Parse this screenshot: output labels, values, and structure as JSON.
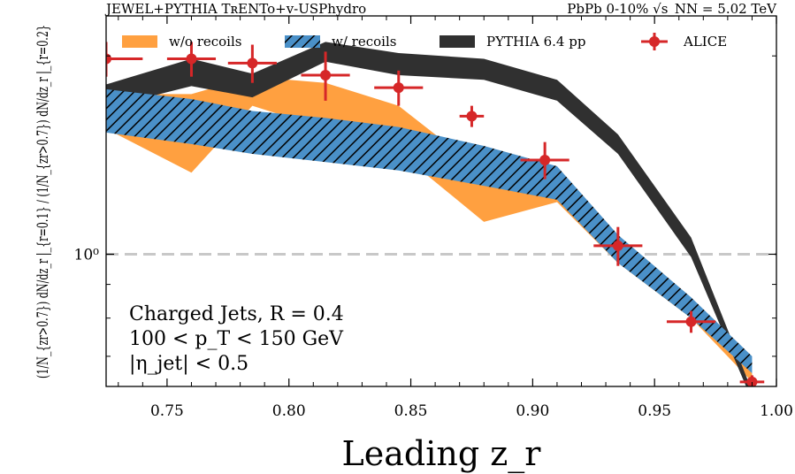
{
  "chart_data": {
    "type": "line",
    "title_left": "JEWEL+PYTHIA TʀENTo+v-USPhydro",
    "title_right": "PbPb 0-10% √s_NN = 5.02 TeV",
    "xlabel": "Leading z_r",
    "ylabel": "(1/N_{zr>0.7}) dN/dz_r |_{r=0.1} / (1/N_{zr>0.7}) dN/dz_r |_{r=0.2}",
    "xlim": [
      0.725,
      1.0
    ],
    "ylim": [
      0.63,
      2.3
    ],
    "yscale": "log",
    "x_ticks": [
      0.75,
      0.8,
      0.85,
      0.9,
      0.95,
      1.0
    ],
    "x_tick_labels": [
      "0.75",
      "0.80",
      "0.85",
      "0.90",
      "0.95",
      "1.00"
    ],
    "y_ticks": [
      1.0
    ],
    "y_tick_labels": [
      "10⁰"
    ],
    "reference_line": {
      "y": 1.0,
      "style": "dashed",
      "color": "#c8c8c8"
    },
    "legend_position": "top",
    "legend": [
      {
        "label": "w/o recoils",
        "style": "band",
        "color": "#ffa040"
      },
      {
        "label": "w/ recoils",
        "style": "hatched-band",
        "color": "#4a90c8"
      },
      {
        "label": "PYTHIA 6.4 pp",
        "style": "band",
        "color": "#303030"
      },
      {
        "label": "ALICE",
        "style": "errorbar",
        "color": "#d62728"
      }
    ],
    "series": [
      {
        "name": "w/o recoils",
        "style": "band",
        "color": "#ffa040",
        "x": [
          0.725,
          0.76,
          0.785,
          0.815,
          0.845,
          0.88,
          0.91,
          0.935,
          0.965,
          0.99
        ],
        "lower": [
          1.55,
          1.33,
          1.68,
          1.55,
          1.43,
          1.12,
          1.2,
          0.97,
          0.8,
          0.64
        ],
        "upper": [
          1.75,
          1.75,
          1.86,
          1.82,
          1.68,
          1.33,
          1.23,
          1.0,
          0.83,
          0.66
        ]
      },
      {
        "name": "w/ recoils",
        "style": "hatched-band",
        "color": "#4a90c8",
        "x": [
          0.725,
          0.76,
          0.785,
          0.815,
          0.845,
          0.88,
          0.91,
          0.935,
          0.965,
          0.99
        ],
        "lower": [
          1.53,
          1.47,
          1.42,
          1.38,
          1.34,
          1.27,
          1.21,
          0.97,
          0.8,
          0.66
        ],
        "upper": [
          1.78,
          1.72,
          1.65,
          1.61,
          1.56,
          1.46,
          1.36,
          1.07,
          0.86,
          0.7
        ]
      },
      {
        "name": "PYTHIA 6.4 pp",
        "style": "band",
        "color": "#303030",
        "x": [
          0.725,
          0.76,
          0.785,
          0.815,
          0.845,
          0.88,
          0.91,
          0.935,
          0.965,
          0.99
        ],
        "lower": [
          1.67,
          1.8,
          1.73,
          1.96,
          1.87,
          1.84,
          1.71,
          1.42,
          0.99,
          0.6
        ],
        "upper": [
          1.81,
          1.98,
          1.88,
          2.1,
          2.02,
          1.98,
          1.84,
          1.52,
          1.06,
          0.62
        ]
      },
      {
        "name": "ALICE",
        "style": "errorbar",
        "color": "#d62728",
        "x": [
          0.725,
          0.76,
          0.785,
          0.815,
          0.845,
          0.875,
          0.905,
          0.935,
          0.965,
          0.99
        ],
        "y": [
          1.98,
          1.98,
          1.95,
          1.87,
          1.79,
          1.62,
          1.39,
          1.03,
          0.79,
          0.64
        ],
        "xerr": [
          0.015,
          0.01,
          0.01,
          0.01,
          0.01,
          0.005,
          0.01,
          0.01,
          0.01,
          0.005
        ],
        "yerr": [
          0.12,
          0.12,
          0.13,
          0.16,
          0.11,
          0.06,
          0.09,
          0.07,
          0.03,
          0.015
        ]
      }
    ],
    "annotations": [
      "Charged Jets, R = 0.4",
      "100 < p_T < 150 GeV",
      "|η_jet| < 0.5"
    ]
  }
}
